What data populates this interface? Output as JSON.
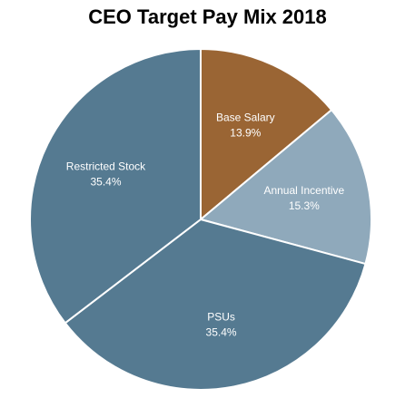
{
  "chart_data": {
    "type": "pie",
    "title": "CEO Target Pay Mix 2018",
    "slices": [
      {
        "label": "Base Salary",
        "value": 13.9,
        "display": "13.9%",
        "color": "#9a6534"
      },
      {
        "label": "Annual Incentive",
        "value": 15.3,
        "display": "15.3%",
        "color": "#8fa9bb"
      },
      {
        "label": "PSUs",
        "value": 35.4,
        "display": "35.4%",
        "color": "#557a91"
      },
      {
        "label": "Restricted Stock",
        "value": 35.4,
        "display": "35.4%",
        "color": "#557a91"
      }
    ],
    "start_angle_deg": 0,
    "direction": "clockwise",
    "slice_border_color": "#ffffff",
    "legend": "none"
  }
}
